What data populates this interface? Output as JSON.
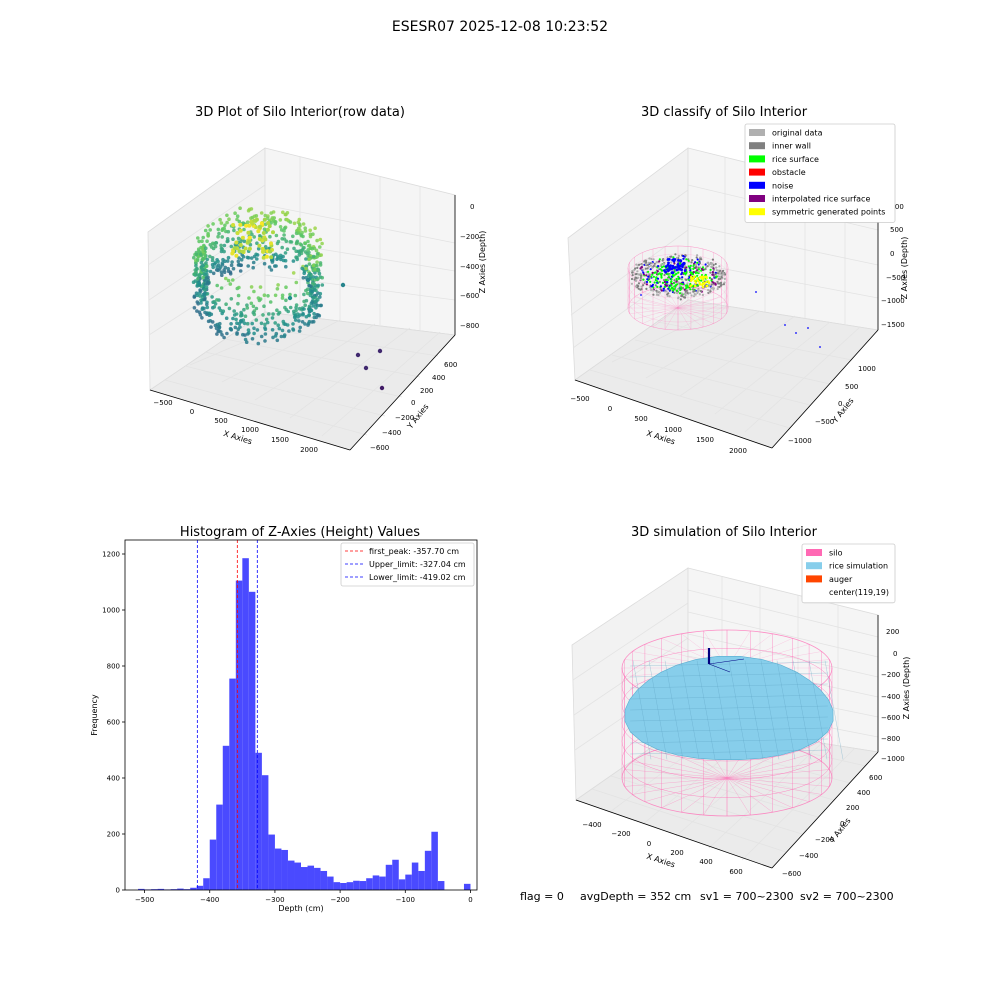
{
  "suptitle": "ESESR07 2025-12-08 10:23:52",
  "chart_data": [
    {
      "type": "scatter",
      "title": "3D Plot of Silo Interior(row data)",
      "xlabel": "X Axies",
      "ylabel": "Y Axies",
      "zlabel": "Z Axies (Depth)",
      "x_ticks": [
        "−500",
        "0",
        "500",
        "1000",
        "1500",
        "2000"
      ],
      "y_ticks": [
        "−600",
        "−400",
        "−200",
        "0",
        "200",
        "400",
        "600"
      ],
      "z_ticks": [
        "−800",
        "−600",
        "−400",
        "−200",
        "0"
      ],
      "colormap": "viridis"
    },
    {
      "type": "scatter",
      "title": "3D classify of Silo Interior",
      "xlabel": "X Axies",
      "ylabel": "Y Axies",
      "zlabel": "Z Axies (Depth)",
      "x_ticks": [
        "−500",
        "0",
        "500",
        "1000",
        "1500",
        "2000"
      ],
      "y_ticks": [
        "−1000",
        "−500",
        "0",
        "500",
        "1000"
      ],
      "z_ticks": [
        "−1500",
        "−1000",
        "−500",
        "0",
        "500",
        "1000"
      ],
      "legend": [
        {
          "label": "original data",
          "color": "#b0b0b0"
        },
        {
          "label": "inner wall",
          "color": "#808080"
        },
        {
          "label": "rice surface",
          "color": "#00ff00"
        },
        {
          "label": "obstacle",
          "color": "#ff0000"
        },
        {
          "label": "noise",
          "color": "#0000ff"
        },
        {
          "label": "interpolated rice surface",
          "color": "#800080"
        },
        {
          "label": "symmetric generated points",
          "color": "#ffff00"
        }
      ]
    },
    {
      "type": "bar",
      "title": "Histogram of Z-Axies (Height) Values",
      "xlabel": "Depth (cm)",
      "ylabel": "Frequency",
      "xlim": [
        -530,
        10
      ],
      "ylim": [
        0,
        1250
      ],
      "x_ticks": [
        -500,
        -400,
        -300,
        -200,
        -100,
        0
      ],
      "y_ticks": [
        0,
        200,
        400,
        600,
        800,
        1000,
        1200
      ],
      "bin_width": 10,
      "bins_start": [
        -510,
        -500,
        -490,
        -480,
        -470,
        -460,
        -450,
        -440,
        -430,
        -420,
        -410,
        -400,
        -390,
        -380,
        -370,
        -360,
        -350,
        -340,
        -330,
        -320,
        -310,
        -300,
        -290,
        -280,
        -270,
        -260,
        -250,
        -240,
        -230,
        -220,
        -210,
        -200,
        -190,
        -180,
        -170,
        -160,
        -150,
        -140,
        -130,
        -120,
        -110,
        -100,
        -90,
        -80,
        -70,
        -60,
        -50,
        -40,
        -30,
        -20,
        -10,
        0
      ],
      "values": [
        4,
        2,
        3,
        4,
        2,
        3,
        5,
        3,
        8,
        15,
        42,
        180,
        305,
        515,
        755,
        1105,
        1185,
        1065,
        490,
        410,
        198,
        148,
        143,
        105,
        98,
        82,
        87,
        79,
        68,
        48,
        28,
        25,
        28,
        33,
        32,
        42,
        52,
        48,
        90,
        108,
        38,
        55,
        98,
        68,
        140,
        208,
        32,
        0,
        0,
        0,
        22,
        0
      ],
      "bar_color": "#4a4aff",
      "vlines": [
        {
          "label": "first_peak: -357.70 cm",
          "value": -357.7,
          "color": "#ff0000"
        },
        {
          "label": "Upper_limit: -327.04 cm",
          "value": -327.04,
          "color": "#0000ff"
        },
        {
          "label": "Lower_limit: -419.02 cm",
          "value": -419.02,
          "color": "#0000ff"
        }
      ]
    },
    {
      "type": "scatter",
      "title": "3D simulation of Silo Interior",
      "xlabel": "X Axies",
      "ylabel": "Y Axies",
      "zlabel": "Z Axies (Depth)",
      "x_ticks": [
        "−400",
        "−200",
        "0",
        "200",
        "400",
        "600"
      ],
      "y_ticks": [
        "−600",
        "−400",
        "−200",
        "0",
        "200",
        "400",
        "600"
      ],
      "z_ticks": [
        "−1000",
        "−800",
        "−600",
        "−400",
        "−200",
        "0",
        "200"
      ],
      "legend": [
        {
          "label": "silo",
          "color": "#ff69b4"
        },
        {
          "label": "rice simulation",
          "color": "#87ceeb"
        },
        {
          "label": "auger",
          "color": "#ff4500"
        },
        {
          "label": "center(119,19)",
          "color": ""
        }
      ]
    }
  ],
  "footer": {
    "flag": "flag = 0",
    "avg": "avgDepth = 352 cm",
    "sv1": "sv1 = 700~2300",
    "sv2": "sv2 = 700~2300"
  }
}
